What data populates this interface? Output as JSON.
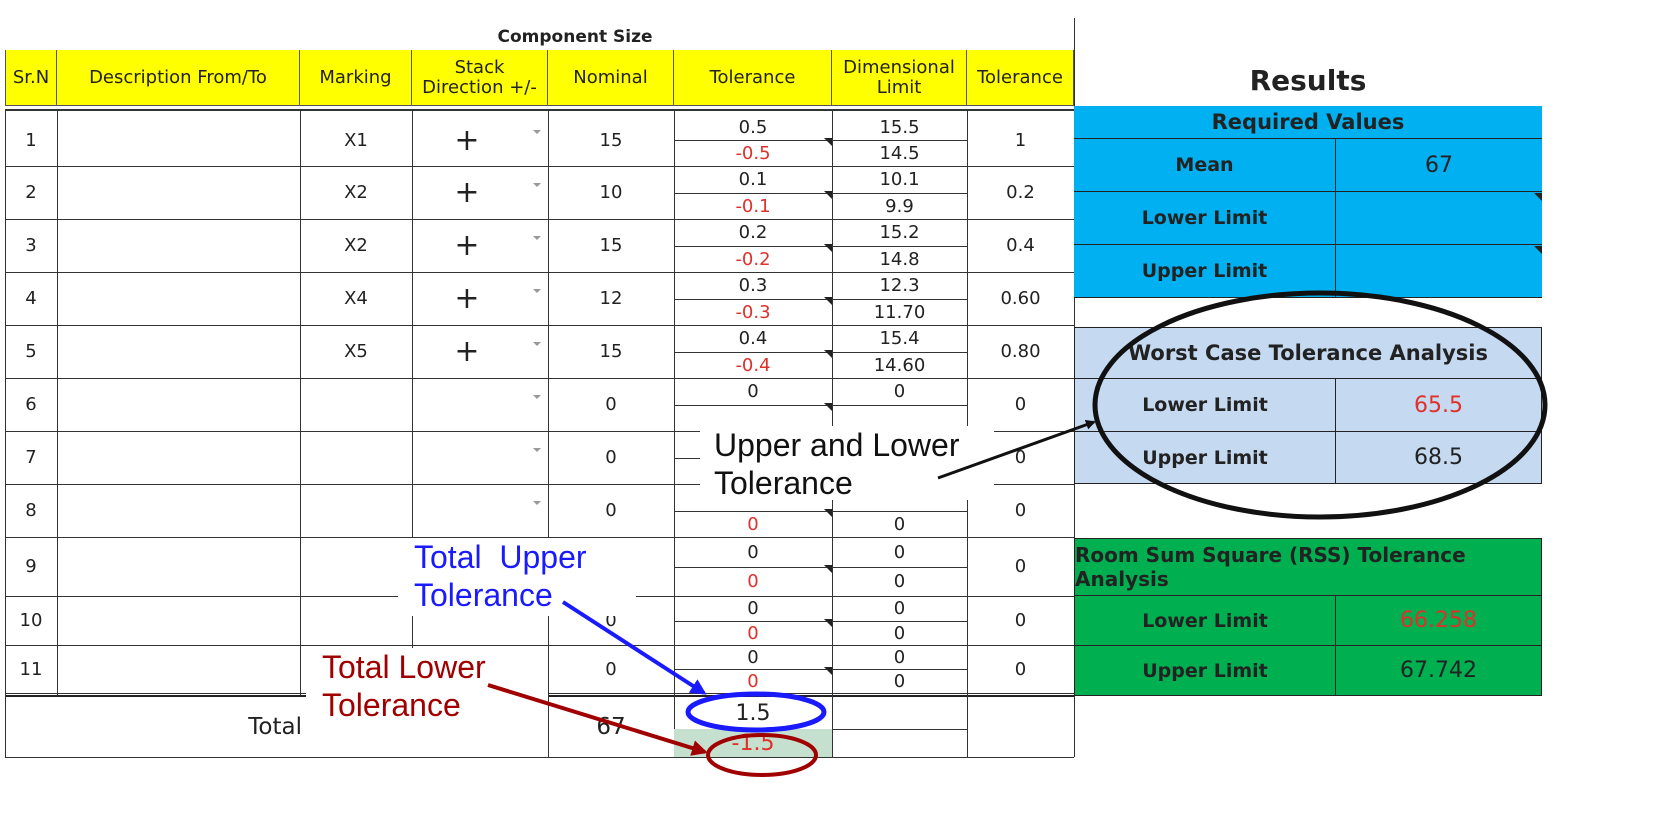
{
  "table": {
    "group_header": "Component Size",
    "headers": {
      "srn": "Sr.N",
      "description": "Description From/To",
      "marking": "Marking",
      "stack_direction": "Stack Direction +/-",
      "nominal": "Nominal",
      "tolerance": "Tolerance",
      "dimensional_limit": "Dimensional Limit",
      "tolerance_total": "Tolerance"
    },
    "rows": [
      {
        "srn": "1",
        "marking": "X1",
        "direction": "+",
        "nominal": "15",
        "tol_upper": "0.5",
        "tol_lower": "-0.5",
        "dim_upper": "15.5",
        "dim_lower": "14.5",
        "tol_total": "1"
      },
      {
        "srn": "2",
        "marking": "X2",
        "direction": "+",
        "nominal": "10",
        "tol_upper": "0.1",
        "tol_lower": "-0.1",
        "dim_upper": "10.1",
        "dim_lower": "9.9",
        "tol_total": "0.2"
      },
      {
        "srn": "3",
        "marking": "X2",
        "direction": "+",
        "nominal": "15",
        "tol_upper": "0.2",
        "tol_lower": "-0.2",
        "dim_upper": "15.2",
        "dim_lower": "14.8",
        "tol_total": "0.4"
      },
      {
        "srn": "4",
        "marking": "X4",
        "direction": "+",
        "nominal": "12",
        "tol_upper": "0.3",
        "tol_lower": "-0.3",
        "dim_upper": "12.3",
        "dim_lower": "11.70",
        "tol_total": "0.60"
      },
      {
        "srn": "5",
        "marking": "X5",
        "direction": "+",
        "nominal": "15",
        "tol_upper": "0.4",
        "tol_lower": "-0.4",
        "dim_upper": "15.4",
        "dim_lower": "14.60",
        "tol_total": "0.80"
      },
      {
        "srn": "6",
        "marking": "",
        "direction": "",
        "nominal": "0",
        "tol_upper": "0",
        "tol_lower": "",
        "dim_upper": "0",
        "dim_lower": "",
        "tol_total": "0"
      },
      {
        "srn": "7",
        "marking": "",
        "direction": "",
        "nominal": "0",
        "tol_upper": "",
        "tol_lower": "",
        "dim_upper": "",
        "dim_lower": "",
        "tol_total": "0"
      },
      {
        "srn": "8",
        "marking": "",
        "direction": "",
        "nominal": "0",
        "tol_upper": "",
        "tol_lower": "0",
        "dim_upper": "",
        "dim_lower": "0",
        "tol_total": "0"
      },
      {
        "srn": "9",
        "marking": "",
        "direction": "",
        "nominal": "",
        "tol_upper": "0",
        "tol_lower": "0",
        "dim_upper": "0",
        "dim_lower": "0",
        "tol_total": "0"
      },
      {
        "srn": "10",
        "marking": "",
        "direction": "",
        "nominal": "0",
        "tol_upper": "0",
        "tol_lower": "0",
        "dim_upper": "0",
        "dim_lower": "0",
        "tol_total": "0"
      },
      {
        "srn": "11",
        "marking": "",
        "direction": "",
        "nominal": "0",
        "tol_upper": "0",
        "tol_lower": "0",
        "dim_upper": "0",
        "dim_lower": "0",
        "tol_total": "0"
      }
    ],
    "total": {
      "label": "Total",
      "nominal": "67",
      "tol_upper": "1.5",
      "tol_lower": "-1.5"
    }
  },
  "results": {
    "title": "Results",
    "required": {
      "header": "Required Values",
      "mean_label": "Mean",
      "mean_value": "67",
      "lower_label": "Lower Limit",
      "lower_value": "",
      "upper_label": "Upper Limit",
      "upper_value": ""
    },
    "worst_case": {
      "header": "Worst Case Tolerance Analysis",
      "lower_label": "Lower Limit",
      "lower_value": "65.5",
      "upper_label": "Upper Limit",
      "upper_value": "68.5"
    },
    "rss": {
      "header": "Room Sum Square (RSS) Tolerance Analysis",
      "lower_label": "Lower Limit",
      "lower_value": "66.258",
      "upper_label": "Upper Limit",
      "upper_value": "67.742"
    }
  },
  "annotations": {
    "upper_lower": "Upper and Lower\nTolerance",
    "total_upper": "Total  Upper\nTolerance",
    "total_lower": "Total Lower\nTolerance"
  },
  "colors": {
    "header_yellow": "#ffff00",
    "required_blue": "#00b0f0",
    "worst_case_lightblue": "#c5d9f1",
    "rss_green": "#00b050",
    "negative_red": "#e0302a",
    "total_lower_fill": "#c6e0cf",
    "annotation_blue": "#1a1aff",
    "annotation_darkred": "#a00000"
  }
}
